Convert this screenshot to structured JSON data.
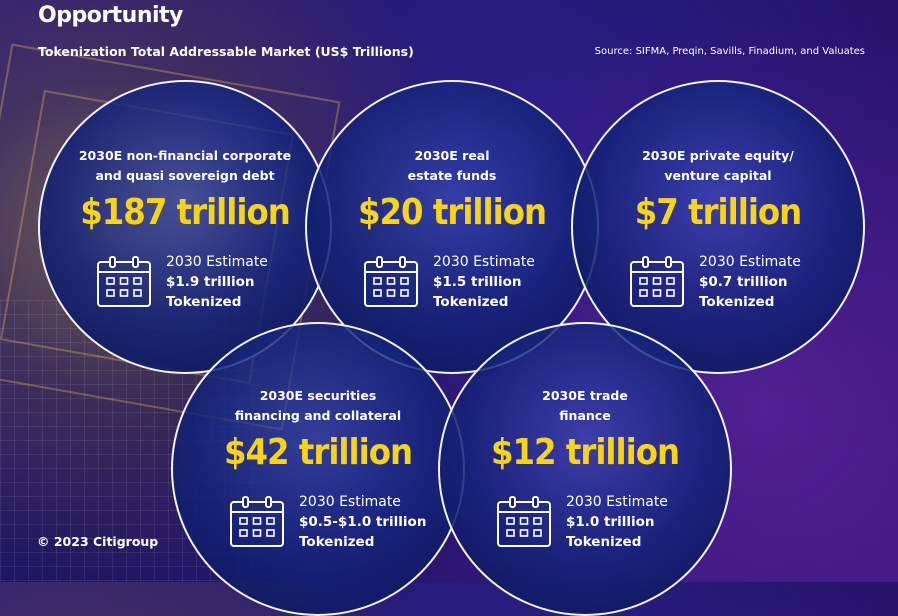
{
  "header": {
    "title": "Opportunity",
    "subtitle": "Tokenization Total Addressable Market (US$ Trillions)",
    "source": "Source: SIFMA, Preqin, Savills, Finadium, and Valuates"
  },
  "footer": {
    "copyright": "© 2023 Citigroup"
  },
  "colors": {
    "accent": "#f7d417",
    "circle_border": "#ffffff",
    "background": "#1d1463"
  },
  "markets": [
    {
      "label_line1": "2030E non-financial corporate",
      "label_line2": "and quasi sovereign debt",
      "value": "$187 trillion",
      "estimate_label": "2030 Estimate",
      "estimate_value": "$1.9 trillion",
      "estimate_status": "Tokenized",
      "icon": "calendar-icon"
    },
    {
      "label_line1": "2030E real",
      "label_line2": "estate funds",
      "value": "$20 trillion",
      "estimate_label": "2030 Estimate",
      "estimate_value": "$1.5 trillion",
      "estimate_status": "Tokenized",
      "icon": "calendar-icon"
    },
    {
      "label_line1": "2030E private equity/",
      "label_line2": "venture capital",
      "value": "$7 trillion",
      "estimate_label": "2030 Estimate",
      "estimate_value": "$0.7 trillion",
      "estimate_status": "Tokenized",
      "icon": "calendar-icon"
    },
    {
      "label_line1": "2030E securities",
      "label_line2": "financing and collateral",
      "value": "$42 trillion",
      "estimate_label": "2030 Estimate",
      "estimate_value": "$0.5-$1.0 trillion",
      "estimate_status": "Tokenized",
      "icon": "calendar-icon"
    },
    {
      "label_line1": "2030E trade",
      "label_line2": "finance",
      "value": "$12 trillion",
      "estimate_label": "2030 Estimate",
      "estimate_value": "$1.0 trillion",
      "estimate_status": "Tokenized",
      "icon": "calendar-icon"
    }
  ]
}
